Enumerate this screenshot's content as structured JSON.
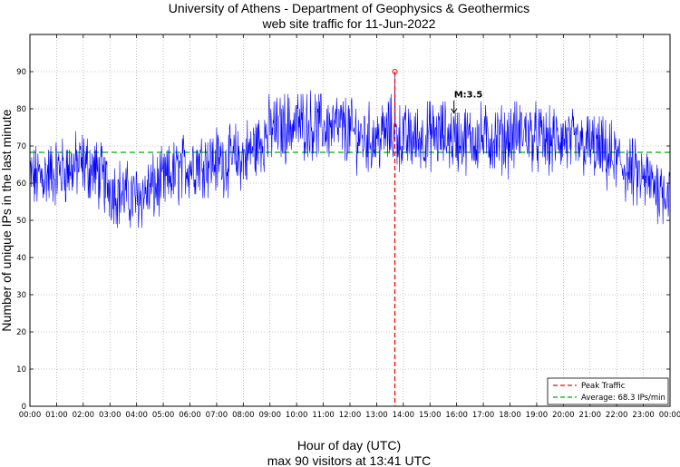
{
  "chart_data": {
    "type": "line",
    "title": "University of Athens - Department of Geophysics & Geothermics",
    "subtitle": "web site traffic for 11-Jun-2022",
    "xlabel": "Hour of day (UTC)",
    "xlabel2": "max 90 visitors at 13:41 UTC",
    "ylabel": "Number of unique IPs in the last minute",
    "xlim": [
      0,
      24
    ],
    "ylim": [
      0,
      100
    ],
    "grid": true,
    "x_ticks": [
      "00:00",
      "01:00",
      "02:00",
      "03:00",
      "04:00",
      "05:00",
      "06:00",
      "07:00",
      "08:00",
      "09:00",
      "10:00",
      "11:00",
      "12:00",
      "13:00",
      "14:00",
      "15:00",
      "16:00",
      "17:00",
      "18:00",
      "19:00",
      "20:00",
      "21:00",
      "22:00",
      "23:00",
      "00:00"
    ],
    "y_ticks": [
      0,
      10,
      20,
      30,
      40,
      50,
      60,
      70,
      80,
      90
    ],
    "series_color": "#0000ff",
    "hourly_profile": {
      "x": [
        0,
        0.5,
        1,
        1.5,
        2,
        2.5,
        3,
        3.5,
        4,
        4.5,
        5,
        5.5,
        6,
        6.5,
        7,
        7.5,
        8,
        8.5,
        9,
        9.5,
        10,
        10.5,
        11,
        11.5,
        12,
        12.5,
        13,
        13.5,
        14,
        14.5,
        15,
        15.5,
        16,
        16.5,
        17,
        17.5,
        18,
        18.5,
        19,
        19.5,
        20,
        20.5,
        21,
        21.5,
        22,
        22.5,
        23,
        23.5,
        24
      ],
      "values": [
        61,
        62,
        63,
        64,
        65,
        63,
        59,
        57,
        56,
        58,
        60,
        63,
        65,
        66,
        66,
        66,
        67,
        70,
        74,
        75,
        76,
        76,
        75,
        75,
        74,
        72,
        72,
        74,
        72,
        72,
        73,
        73,
        72,
        72,
        72,
        72,
        72,
        74,
        72,
        71,
        72,
        70,
        70,
        68,
        66,
        63,
        61,
        59,
        58
      ]
    },
    "peak": {
      "label": "Peak Traffic",
      "x": 13.683,
      "y": 90,
      "color": "#ff0000"
    },
    "average": {
      "label": "Average: 68.3 IPs/min",
      "value": 68.3,
      "color": "#00aa00"
    },
    "annotation": {
      "text": "M:3.5",
      "x": 15.9,
      "y": 83
    },
    "legend_position": "bottom-right"
  }
}
